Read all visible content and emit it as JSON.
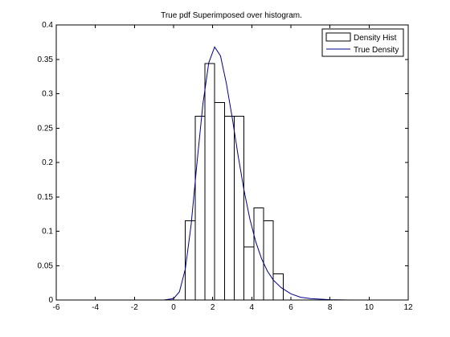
{
  "chart_data": {
    "type": "bar",
    "title": "True pdf Superimposed over histogram.",
    "xlabel": "",
    "ylabel": "",
    "xlim": [
      -6,
      12
    ],
    "ylim": [
      0,
      0.4
    ],
    "x_ticks": [
      -6,
      -4,
      -2,
      0,
      2,
      4,
      6,
      8,
      10,
      12
    ],
    "y_ticks": [
      0,
      0.05,
      0.1,
      0.15,
      0.2,
      0.25,
      0.3,
      0.35,
      0.4
    ],
    "y_tick_labels": [
      "0",
      "0.05",
      "0.1",
      "0.15",
      "0.2",
      "0.25",
      "0.3",
      "0.35",
      "0.4"
    ],
    "legend": {
      "position": "top-right",
      "entries": [
        "Density Hist",
        "True Density"
      ]
    },
    "series": [
      {
        "name": "Density Hist",
        "type": "bar",
        "bins": [
          {
            "left": 0.6,
            "right": 1.1,
            "value": 0.115
          },
          {
            "left": 1.1,
            "right": 1.6,
            "value": 0.267
          },
          {
            "left": 1.6,
            "right": 2.1,
            "value": 0.344
          },
          {
            "left": 2.1,
            "right": 2.6,
            "value": 0.287
          },
          {
            "left": 2.6,
            "right": 3.1,
            "value": 0.267
          },
          {
            "left": 3.1,
            "right": 3.6,
            "value": 0.267
          },
          {
            "left": 3.6,
            "right": 4.1,
            "value": 0.077
          },
          {
            "left": 4.1,
            "right": 4.6,
            "value": 0.134
          },
          {
            "left": 4.6,
            "right": 5.1,
            "value": 0.115
          },
          {
            "left": 5.1,
            "right": 5.6,
            "value": 0.038
          }
        ]
      },
      {
        "name": "True Density",
        "type": "line",
        "color": "#00008b",
        "points": [
          [
            -1.8,
            0.0
          ],
          [
            -1.0,
            0.0
          ],
          [
            -0.5,
            0.0
          ],
          [
            0.0,
            0.002
          ],
          [
            0.3,
            0.012
          ],
          [
            0.6,
            0.045
          ],
          [
            0.9,
            0.11
          ],
          [
            1.2,
            0.2
          ],
          [
            1.5,
            0.285
          ],
          [
            1.8,
            0.345
          ],
          [
            2.1,
            0.368
          ],
          [
            2.4,
            0.355
          ],
          [
            2.7,
            0.315
          ],
          [
            3.0,
            0.265
          ],
          [
            3.3,
            0.21
          ],
          [
            3.6,
            0.16
          ],
          [
            3.9,
            0.118
          ],
          [
            4.2,
            0.085
          ],
          [
            4.5,
            0.06
          ],
          [
            4.8,
            0.042
          ],
          [
            5.1,
            0.029
          ],
          [
            5.5,
            0.018
          ],
          [
            6.0,
            0.009
          ],
          [
            6.5,
            0.004
          ],
          [
            7.0,
            0.002
          ],
          [
            8.0,
            0.0005
          ],
          [
            9.0,
            0.0
          ],
          [
            10.0,
            0.0
          ],
          [
            12.0,
            0.0
          ]
        ]
      }
    ]
  }
}
